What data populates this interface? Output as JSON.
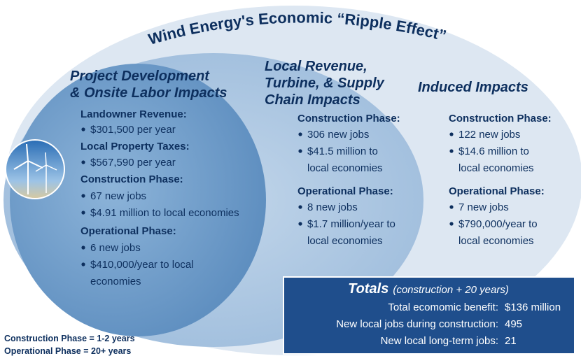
{
  "title": "Wind Energy's Economic “Ripple Effect”",
  "sections": [
    {
      "heading": [
        "Project Development",
        "& Onsite Labor Impacts"
      ],
      "groups": [
        {
          "label": "Landowner Revenue:",
          "items": [
            [
              "$301,500 per year"
            ]
          ]
        },
        {
          "label": "Local Property Taxes:",
          "items": [
            [
              "$567,590 per year"
            ]
          ]
        },
        {
          "label": "Construction Phase:",
          "items": [
            [
              "67 new jobs"
            ],
            [
              "$4.91 million to local economies"
            ]
          ]
        },
        {
          "label": "Operational Phase:",
          "items": [
            [
              "6 new jobs"
            ],
            [
              "$410,000/year to local",
              "economies"
            ]
          ]
        }
      ]
    },
    {
      "heading": [
        "Local Revenue,",
        "Turbine, & Supply",
        "Chain Impacts"
      ],
      "groups": [
        {
          "label": "Construction Phase:",
          "items": [
            [
              "306 new jobs"
            ],
            [
              "$41.5 million to",
              "local economies"
            ]
          ]
        },
        {
          "label": "Operational Phase:",
          "items": [
            [
              "8 new jobs"
            ],
            [
              "$1.7 million/year to",
              "local economies"
            ]
          ]
        }
      ]
    },
    {
      "heading": [
        "Induced Impacts"
      ],
      "groups": [
        {
          "label": "Construction Phase:",
          "items": [
            [
              "122 new jobs"
            ],
            [
              "$14.6 million to",
              "local economies"
            ]
          ]
        },
        {
          "label": "Operational Phase:",
          "items": [
            [
              "7 new jobs"
            ],
            [
              "$790,000/year to",
              "local economies"
            ]
          ]
        }
      ]
    }
  ],
  "totals": {
    "title": "Totals",
    "subtitle": "(construction + 20 years)",
    "rows": [
      {
        "label": "Total ecomomic benefit:",
        "value": "$136 million"
      },
      {
        "label": "New local jobs during construction:",
        "value": "495"
      },
      {
        "label": "New local long-term jobs:",
        "value": "21"
      }
    ]
  },
  "notes": [
    "Construction Phase = 1-2 years",
    "Operational Phase = 20+ years"
  ]
}
